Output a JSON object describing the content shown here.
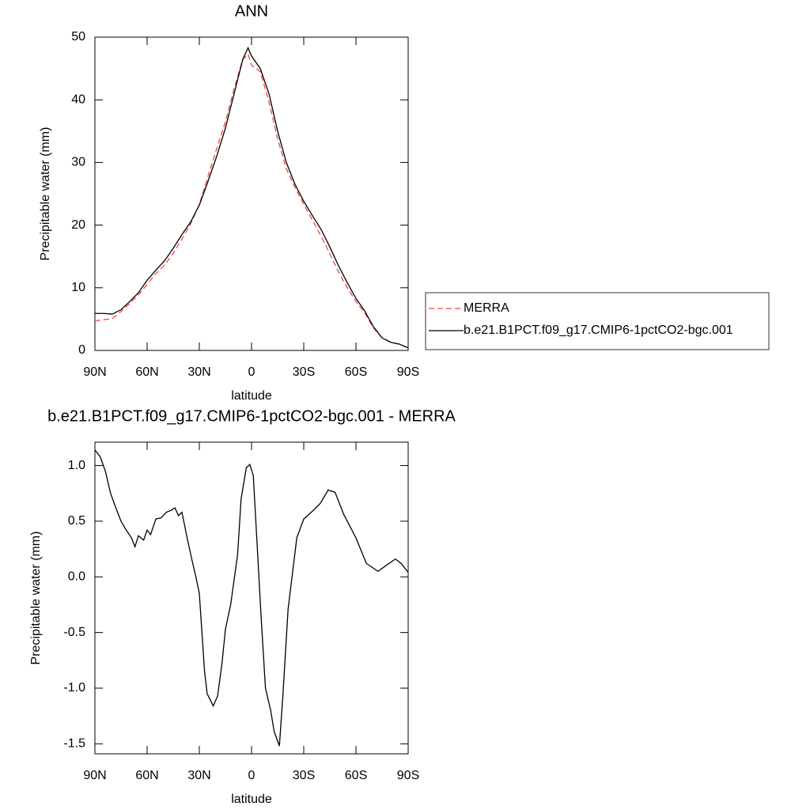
{
  "chart_data": [
    {
      "type": "line",
      "title": "ANN",
      "xlabel": "latitude",
      "ylabel": "Precipitable water (mm)",
      "x": [
        90,
        85,
        80,
        75,
        70,
        65,
        60,
        55,
        50,
        45,
        40,
        35,
        30,
        25,
        20,
        15,
        10,
        5,
        2,
        0,
        -5,
        -10,
        -15,
        -20,
        -25,
        -30,
        -35,
        -40,
        -45,
        -50,
        -55,
        -60,
        -65,
        -70,
        -75,
        -80,
        -85,
        -90
      ],
      "series": [
        {
          "name": "MERRA",
          "color": "#ff4040",
          "dash": true,
          "values": [
            4.7,
            4.9,
            5.1,
            6.2,
            7.5,
            8.9,
            10.5,
            12.3,
            13.6,
            15.5,
            17.8,
            20.2,
            23.3,
            27.8,
            32.2,
            36.5,
            41.8,
            46.5,
            47.3,
            45.5,
            44.5,
            39.7,
            33.8,
            29,
            26,
            23.3,
            20.8,
            18.2,
            15.4,
            12.5,
            10,
            7.8,
            6,
            3.6,
            2,
            1.3,
            1,
            0.4
          ]
        },
        {
          "name": "b.e21.B1PCT.f09_g17.CMIP6-1pctCO2-bgc.001",
          "color": "#000000",
          "dash": false,
          "values": [
            5.9,
            5.9,
            5.8,
            6.5,
            7.8,
            9.2,
            11.2,
            12.8,
            14.3,
            16.3,
            18.5,
            20.5,
            23.2,
            27,
            31,
            35.5,
            41,
            46.5,
            48.3,
            47,
            45,
            41,
            35,
            30,
            26.5,
            23.8,
            21.5,
            19.3,
            16.5,
            13.5,
            10.8,
            8.3,
            6.3,
            3.8,
            2,
            1.3,
            1,
            0.4
          ]
        }
      ],
      "xlim": [
        90,
        -90
      ],
      "xticks": [
        {
          "value": 90,
          "label": "90N"
        },
        {
          "value": 60,
          "label": "60N"
        },
        {
          "value": 30,
          "label": "30N"
        },
        0,
        {
          "value": -30,
          "label": "30S"
        },
        {
          "value": -60,
          "label": "60S"
        },
        {
          "value": -90,
          "label": "90S"
        }
      ],
      "ylim": [
        0,
        50
      ],
      "yticks": [
        0,
        10,
        20,
        30,
        40,
        50
      ],
      "legend": "right"
    },
    {
      "type": "line",
      "title": "b.e21.B1PCT.f09_g17.CMIP6-1pctCO2-bgc.001 - MERRA",
      "xlabel": "latitude",
      "ylabel": "Precipitable water (mm)",
      "x": [
        90,
        87,
        84,
        81,
        78,
        75,
        72,
        69,
        67,
        65,
        62,
        60,
        58,
        55,
        52,
        49,
        46,
        44,
        42,
        40,
        37,
        34.5,
        32,
        30,
        27,
        25.5,
        22,
        19.5,
        17,
        15,
        12,
        8,
        6,
        3,
        1,
        -1,
        -3,
        -5.5,
        -8,
        -11,
        -13,
        -16,
        -18,
        -21,
        -26,
        -30,
        -35,
        -39.5,
        -44,
        -48,
        -53,
        -60,
        -66,
        -72.7,
        -78,
        -82.7,
        -86,
        -90
      ],
      "values": [
        1.14,
        1.08,
        0.95,
        0.75,
        0.62,
        0.5,
        0.42,
        0.35,
        0.27,
        0.37,
        0.33,
        0.42,
        0.38,
        0.52,
        0.53,
        0.58,
        0.6,
        0.62,
        0.55,
        0.58,
        0.35,
        0.17,
        0,
        -0.15,
        -0.85,
        -1.05,
        -1.16,
        -1.07,
        -0.78,
        -0.47,
        -0.25,
        0.2,
        0.7,
        0.98,
        1.01,
        0.91,
        0.35,
        -0.36,
        -1.0,
        -1.2,
        -1.39,
        -1.52,
        -1.07,
        -0.29,
        0.35,
        0.52,
        0.59,
        0.66,
        0.78,
        0.76,
        0.56,
        0.35,
        0.12,
        0.05,
        0.11,
        0.16,
        0.12,
        0.04
      ],
      "color": "#000000",
      "xlim": [
        90,
        -90
      ],
      "xticks": [
        {
          "value": 90,
          "label": "90N"
        },
        {
          "value": 60,
          "label": "60N"
        },
        {
          "value": 30,
          "label": "30N"
        },
        0,
        {
          "value": -30,
          "label": "30S"
        },
        {
          "value": -60,
          "label": "60S"
        },
        {
          "value": -90,
          "label": "90S"
        }
      ],
      "ylim": [
        -1.59,
        1.21
      ],
      "yticks": [
        {
          "value": 1.0,
          "label": "1.0"
        },
        0.5,
        {
          "value": 0,
          "label": "0.0"
        },
        -0.5,
        {
          "value": -1.0,
          "label": "-1.0"
        },
        -1.5
      ]
    }
  ]
}
